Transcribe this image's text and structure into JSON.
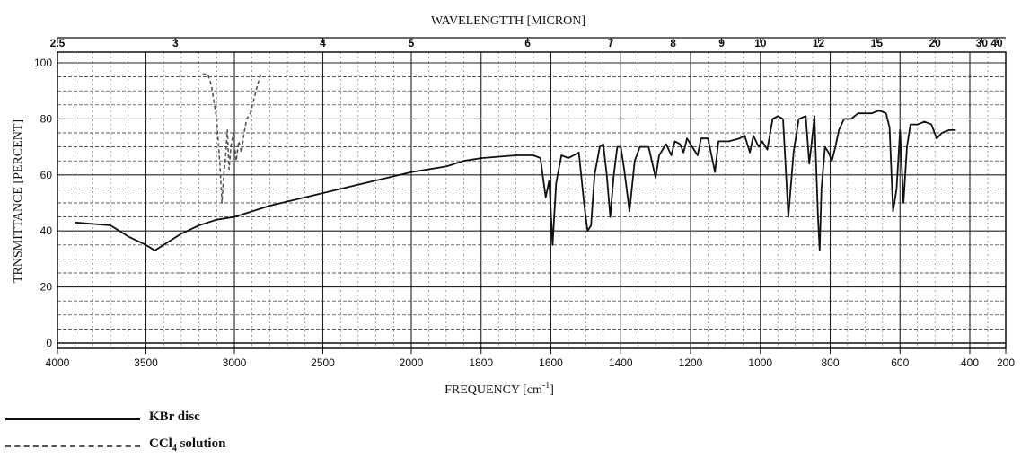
{
  "chart_data": {
    "type": "line",
    "title": "WAVELENGTTH [MICRON]",
    "xlabel": "FREQUENCY [cm",
    "xlabel_sup": "-1",
    "xlabel_suffix": "]",
    "ylabel": "TRNSMITTANCE [PERCENT]",
    "xlim": [
      4000,
      200
    ],
    "ylim": [
      0,
      100
    ],
    "grid": true,
    "x_ticks": [
      "4000",
      "3500",
      "3000",
      "2500",
      "2000",
      "1800",
      "1600",
      "1400",
      "1200",
      "1000",
      "800",
      "600",
      "400",
      "200"
    ],
    "y_ticks": [
      "0",
      "20",
      "40",
      "60",
      "80",
      "100"
    ],
    "top_ticks": [
      "2.5",
      "3",
      "4",
      "5",
      "6",
      "7",
      "8",
      "9",
      "10",
      "12",
      "15",
      "20",
      "30",
      "40"
    ],
    "legend_position": "bottom-left",
    "series": [
      {
        "name": "KBr disc",
        "style": "solid",
        "color": "#111111",
        "points": [
          [
            3900,
            43
          ],
          [
            3700,
            42
          ],
          [
            3600,
            38
          ],
          [
            3500,
            35
          ],
          [
            3450,
            33
          ],
          [
            3400,
            35
          ],
          [
            3300,
            39
          ],
          [
            3200,
            42
          ],
          [
            3100,
            44
          ],
          [
            3000,
            45
          ],
          [
            2900,
            47
          ],
          [
            2800,
            49
          ],
          [
            2600,
            52
          ],
          [
            2400,
            55
          ],
          [
            2200,
            58
          ],
          [
            2000,
            61
          ],
          [
            1900,
            63
          ],
          [
            1850,
            65
          ],
          [
            1800,
            66
          ],
          [
            1700,
            67
          ],
          [
            1650,
            67
          ],
          [
            1630,
            66
          ],
          [
            1615,
            52
          ],
          [
            1605,
            58
          ],
          [
            1595,
            35
          ],
          [
            1585,
            57
          ],
          [
            1570,
            67
          ],
          [
            1550,
            66
          ],
          [
            1520,
            68
          ],
          [
            1505,
            50
          ],
          [
            1495,
            40
          ],
          [
            1485,
            42
          ],
          [
            1475,
            60
          ],
          [
            1460,
            70
          ],
          [
            1450,
            71
          ],
          [
            1440,
            60
          ],
          [
            1430,
            45
          ],
          [
            1420,
            60
          ],
          [
            1410,
            70
          ],
          [
            1400,
            70
          ],
          [
            1390,
            62
          ],
          [
            1375,
            47
          ],
          [
            1360,
            65
          ],
          [
            1345,
            70
          ],
          [
            1320,
            70
          ],
          [
            1300,
            59
          ],
          [
            1290,
            67
          ],
          [
            1270,
            71
          ],
          [
            1255,
            67
          ],
          [
            1245,
            72
          ],
          [
            1230,
            71
          ],
          [
            1220,
            68
          ],
          [
            1210,
            73
          ],
          [
            1200,
            71
          ],
          [
            1180,
            67
          ],
          [
            1170,
            73
          ],
          [
            1150,
            73
          ],
          [
            1130,
            61
          ],
          [
            1120,
            72
          ],
          [
            1090,
            72
          ],
          [
            1060,
            73
          ],
          [
            1045,
            74
          ],
          [
            1030,
            68
          ],
          [
            1020,
            74
          ],
          [
            1005,
            70
          ],
          [
            995,
            72
          ],
          [
            980,
            69
          ],
          [
            965,
            80
          ],
          [
            950,
            81
          ],
          [
            935,
            80
          ],
          [
            920,
            45
          ],
          [
            905,
            68
          ],
          [
            890,
            80
          ],
          [
            870,
            81
          ],
          [
            860,
            64
          ],
          [
            850,
            75
          ],
          [
            845,
            81
          ],
          [
            835,
            45
          ],
          [
            830,
            33
          ],
          [
            825,
            55
          ],
          [
            815,
            70
          ],
          [
            805,
            68
          ],
          [
            795,
            65
          ],
          [
            785,
            70
          ],
          [
            775,
            76
          ],
          [
            760,
            80
          ],
          [
            740,
            80
          ],
          [
            720,
            82
          ],
          [
            700,
            82
          ],
          [
            680,
            82
          ],
          [
            660,
            83
          ],
          [
            640,
            82
          ],
          [
            630,
            77
          ],
          [
            620,
            47
          ],
          [
            610,
            55
          ],
          [
            600,
            76
          ],
          [
            590,
            50
          ],
          [
            580,
            70
          ],
          [
            570,
            78
          ],
          [
            550,
            78
          ],
          [
            530,
            79
          ],
          [
            510,
            78
          ],
          [
            495,
            73
          ],
          [
            480,
            75
          ],
          [
            460,
            76
          ],
          [
            440,
            76
          ]
        ]
      },
      {
        "name": "CCl4 solution",
        "style": "dashed",
        "color": "#555555",
        "points": [
          [
            3180,
            96
          ],
          [
            3150,
            96
          ],
          [
            3130,
            92
          ],
          [
            3100,
            80
          ],
          [
            3080,
            62
          ],
          [
            3070,
            50
          ],
          [
            3060,
            60
          ],
          [
            3050,
            66
          ],
          [
            3040,
            76
          ],
          [
            3030,
            62
          ],
          [
            3020,
            70
          ],
          [
            3005,
            75
          ],
          [
            2990,
            65
          ],
          [
            2975,
            72
          ],
          [
            2960,
            68
          ],
          [
            2945,
            75
          ],
          [
            2930,
            80
          ],
          [
            2910,
            82
          ],
          [
            2890,
            87
          ],
          [
            2870,
            92
          ],
          [
            2850,
            96
          ]
        ]
      }
    ]
  },
  "legend": {
    "kbr_label": "KBr disc",
    "ccl4_label": "CCl",
    "ccl4_sub": "4",
    "ccl4_suffix": " solution"
  }
}
